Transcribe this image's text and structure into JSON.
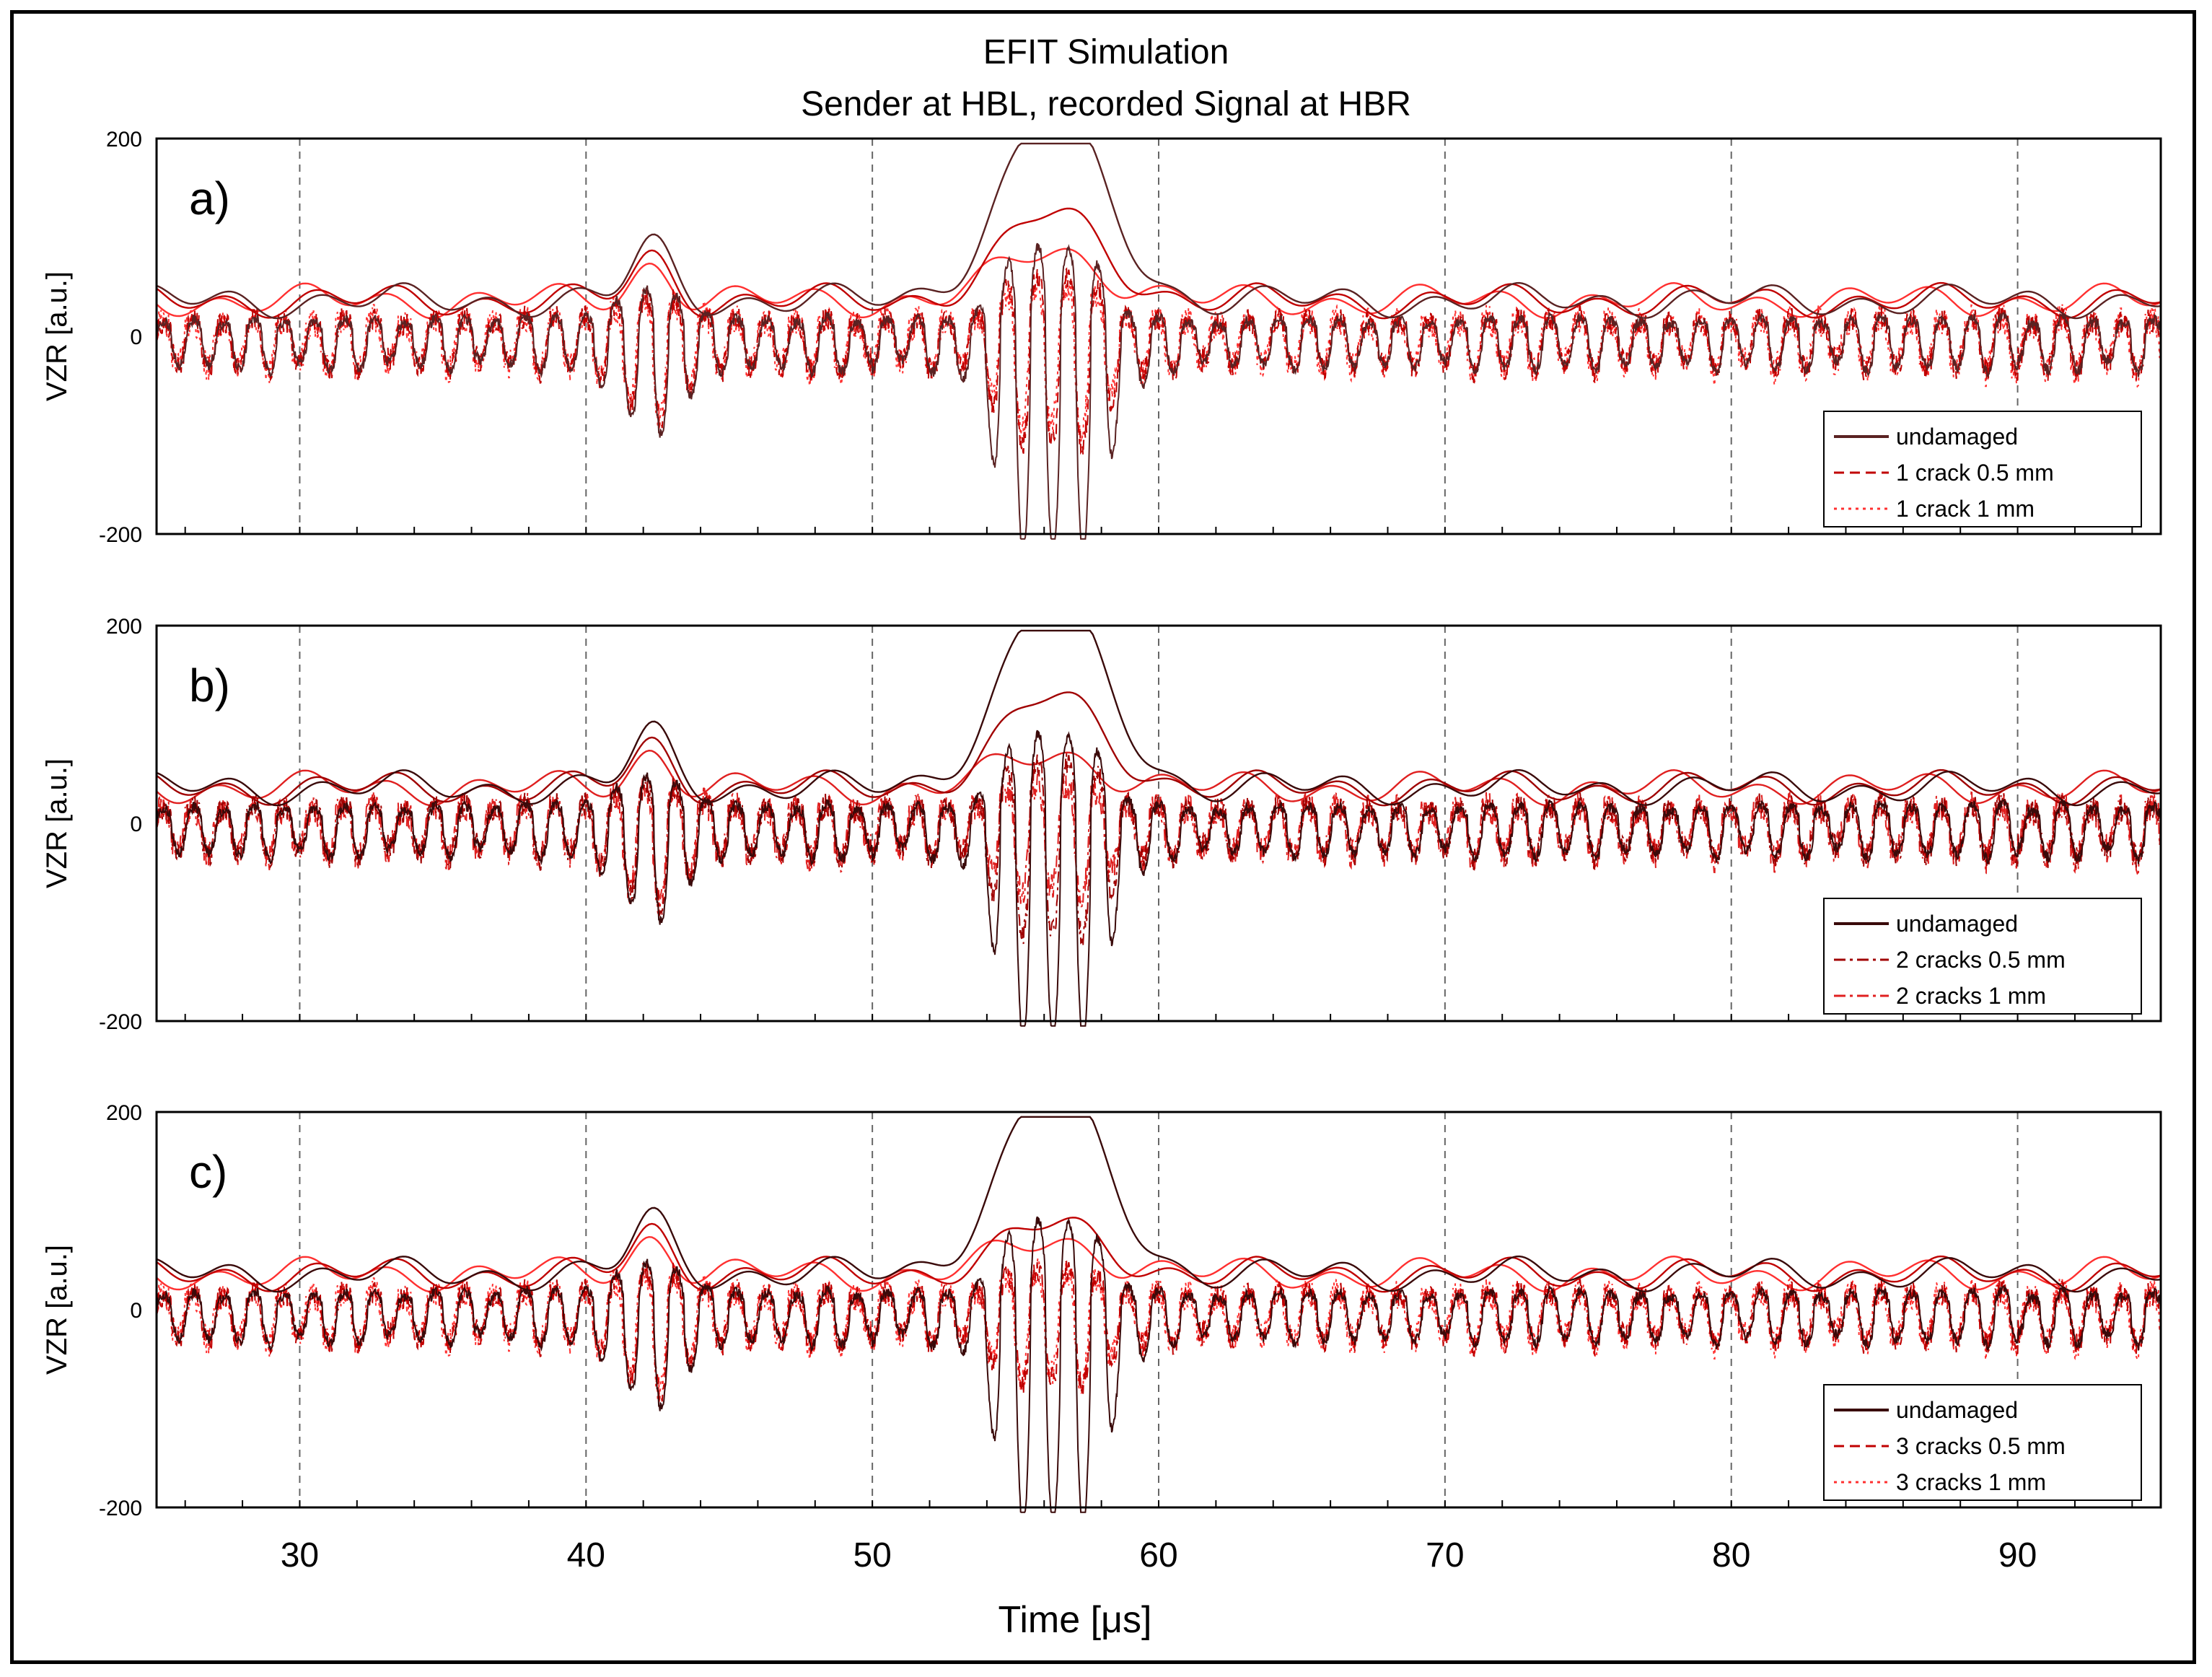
{
  "chart_data": {
    "type": "line",
    "title": "EFIT Simulation",
    "subtitle": "Sender at HBL, recorded Signal at HBR",
    "xlabel": "Time [μs]",
    "xlim": [
      25,
      95
    ],
    "xticks": [
      30,
      40,
      50,
      60,
      70,
      80,
      90
    ],
    "grid": "vertical dashed at x ticks",
    "panels": [
      {
        "label": "a)",
        "ylabel": "VZR [a.u.]",
        "ylim": [
          -200,
          200
        ],
        "yticks": [
          200,
          0,
          -200
        ],
        "legend_position": "bottom-right",
        "series": [
          {
            "name": "undamaged",
            "color": "#5a2222",
            "dash": "solid"
          },
          {
            "name": "1 crack 0.5 mm",
            "color": "#c00000",
            "dash": "dashed"
          },
          {
            "name": "1 crack 1 mm",
            "color": "#ff3030",
            "dash": "dotted"
          }
        ]
      },
      {
        "label": "b)",
        "ylabel": "VZR [a.u.]",
        "ylim": [
          -200,
          200
        ],
        "yticks": [
          200,
          0,
          -200
        ],
        "legend_position": "bottom-right",
        "series": [
          {
            "name": "undamaged",
            "color": "#3a0a0a",
            "dash": "solid"
          },
          {
            "name": "2 cracks 0.5 mm",
            "color": "#a00000",
            "dash": "dashdot"
          },
          {
            "name": "2 cracks 1  mm",
            "color": "#e02020",
            "dash": "dashdot"
          }
        ]
      },
      {
        "label": "c)",
        "ylabel": "VZR [a.u.]",
        "ylim": [
          -200,
          200
        ],
        "yticks": [
          200,
          0,
          -200
        ],
        "legend_position": "bottom-right",
        "series": [
          {
            "name": "undamaged",
            "color": "#3a0a0a",
            "dash": "solid"
          },
          {
            "name": "3 cracks 0.5 mm",
            "color": "#c00000",
            "dash": "dashed"
          },
          {
            "name": "3 cracks 1 mm",
            "color": "#ff3030",
            "dash": "dotted"
          }
        ]
      }
    ],
    "signal_model": {
      "description": "oscillating ultrasonic signal with envelope; peak near 56.3 μs reaching about 190 (undamaged), minima about -200",
      "carrier_frequency_mhz": 0.95,
      "baseline_peak": 40,
      "main_packet": {
        "center": 56.3,
        "amplitude": 190
      },
      "secondary_packet": {
        "center": 42.3,
        "amplitude": 95
      },
      "damaged_peak_amplitudes": {
        "a)": [
          125,
          100
        ],
        "b)": [
          130,
          65
        ],
        "c)": [
          70,
          65
        ]
      }
    }
  }
}
